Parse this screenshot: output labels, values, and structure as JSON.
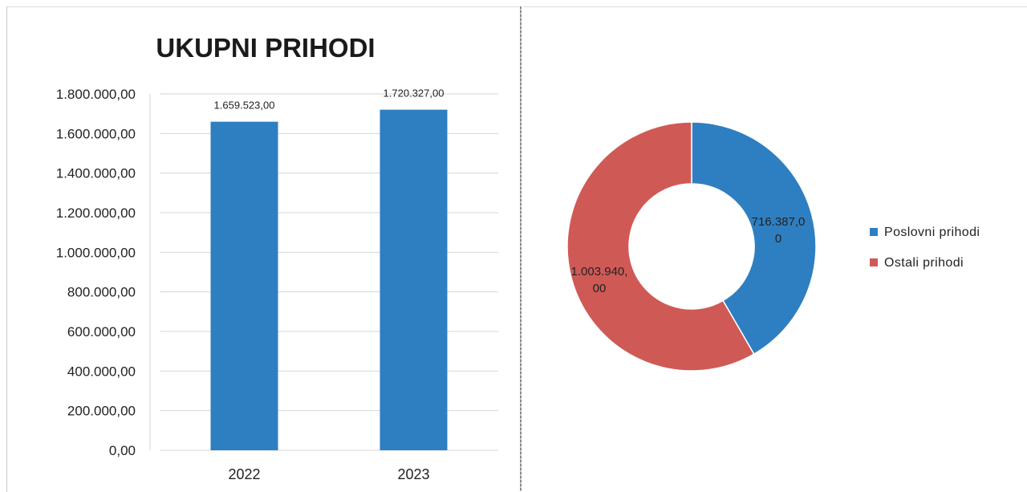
{
  "colors": {
    "bar": "#2e7fc1",
    "poslovni": "#2e7fc1",
    "ostali": "#cf5a55",
    "grid": "#d6d6d6"
  },
  "chart_data": [
    {
      "type": "bar",
      "title": "UKUPNI PRIHODI",
      "categories": [
        "2022",
        "2023"
      ],
      "values": [
        1659523.0,
        1720327.0
      ],
      "value_labels": [
        "1.659.523,00",
        "1.720.327,00"
      ],
      "ylim": [
        0,
        1800000
      ],
      "yticks": [
        {
          "value": 0,
          "label": "0,00"
        },
        {
          "value": 200000,
          "label": "200.000,00"
        },
        {
          "value": 400000,
          "label": "400.000,00"
        },
        {
          "value": 600000,
          "label": "600.000,00"
        },
        {
          "value": 800000,
          "label": "800.000,00"
        },
        {
          "value": 1000000,
          "label": "1.000.000,00"
        },
        {
          "value": 1200000,
          "label": "1.200.000,00"
        },
        {
          "value": 1400000,
          "label": "1.400.000,00"
        },
        {
          "value": 1600000,
          "label": "1.600.000,00"
        },
        {
          "value": 1800000,
          "label": "1.800.000,00"
        }
      ],
      "grid": true
    },
    {
      "type": "pie",
      "donut": true,
      "slices": [
        {
          "name": "Poslovni prihodi",
          "value": 716387.0,
          "label_lines": [
            "716.387,0",
            "0"
          ],
          "color_key": "poslovni"
        },
        {
          "name": "Ostali prihodi",
          "value": 1003940.0,
          "label_lines": [
            "1.003.940,",
            "00"
          ],
          "color_key": "ostali"
        }
      ],
      "legend": "right"
    }
  ]
}
